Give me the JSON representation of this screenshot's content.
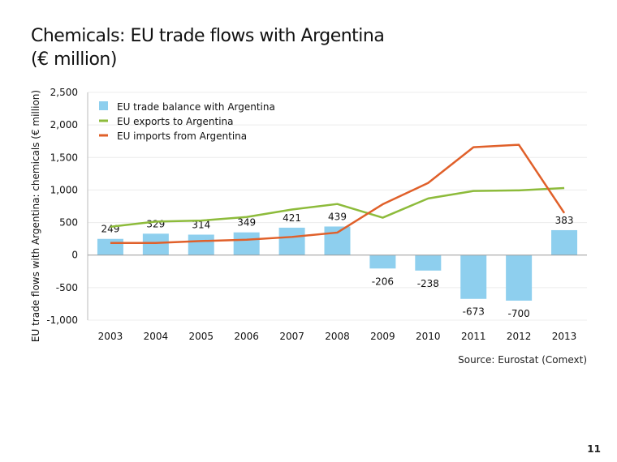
{
  "chart_data": {
    "type": "bar+line",
    "title": "Chemicals: EU trade flows with Argentina (€ million)",
    "title_lines": [
      "Chemicals: EU trade flows with Argentina",
      "(€ million)"
    ],
    "ylabel": "EU trade flows with Argentina: chemicals (€ million)",
    "xlabel": "",
    "ylim": [
      -1000,
      2500
    ],
    "yticks": [
      -1000,
      -500,
      0,
      500,
      1000,
      1500,
      2000,
      2500
    ],
    "ytick_labels": [
      "-1,000",
      "-500",
      "0",
      "500",
      "1,000",
      "1,500",
      "2,000",
      "2,500"
    ],
    "grid": true,
    "legend_position": "top-left",
    "categories": [
      "2003",
      "2004",
      "2005",
      "2006",
      "2007",
      "2008",
      "2009",
      "2010",
      "2011",
      "2012",
      "2013"
    ],
    "series": [
      {
        "name": "EU trade balance with Argentina",
        "type": "bar",
        "color": "#8ecfee",
        "values": [
          249,
          329,
          314,
          349,
          421,
          439,
          -206,
          -238,
          -673,
          -700,
          383
        ],
        "labels": [
          "249",
          "329",
          "314",
          "349",
          "421",
          "439",
          "-206",
          "-238",
          "-673",
          "-700",
          "383"
        ]
      },
      {
        "name": "EU exports to Argentina",
        "type": "line",
        "color": "#8dbb3b",
        "values": [
          435,
          515,
          530,
          585,
          700,
          785,
          575,
          870,
          985,
          995,
          1030
        ]
      },
      {
        "name": "EU imports from Argentina",
        "type": "line",
        "color": "#e0602a",
        "values": [
          186,
          186,
          216,
          236,
          279,
          346,
          781,
          1108,
          1658,
          1695,
          647
        ]
      }
    ]
  },
  "source": "Source: Eurostat (Comext)",
  "page_number": "11"
}
